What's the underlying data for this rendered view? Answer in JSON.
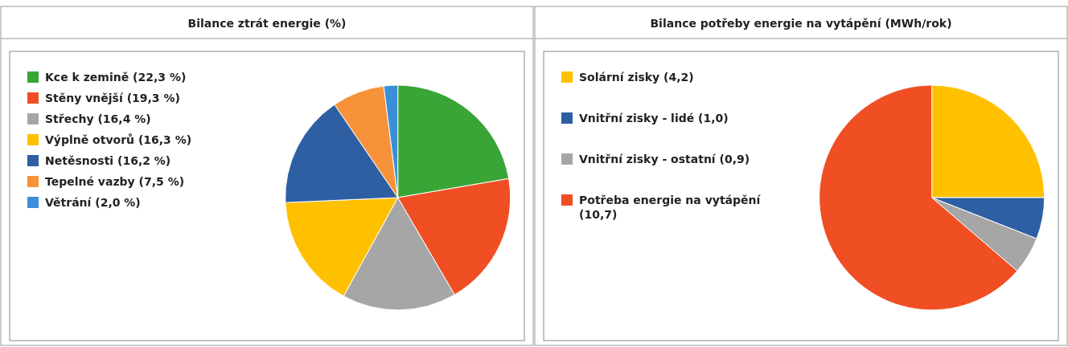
{
  "chart_data": [
    {
      "type": "pie",
      "title": "Bilance ztrát energie (%)",
      "legend": "left",
      "categories": [
        "Kce k zemině (22,3 %)",
        "Stěny vnější (19,3 %)",
        "Střechy (16,4 %)",
        "Výplně otvorů (16,3 %)",
        "Netěsnosti (16,2 %)",
        "Tepelné vazby (7,5 %)",
        "Větrání (2,0 %)"
      ],
      "values": [
        22.3,
        19.3,
        16.4,
        16.3,
        16.2,
        7.5,
        2.0
      ],
      "colors": [
        "#3aa537",
        "#f04e23",
        "#a6a6a6",
        "#ffc000",
        "#2e5fa3",
        "#f7923a",
        "#3a8fd8"
      ]
    },
    {
      "type": "pie",
      "title": "Bilance potřeby energie na vytápění (MWh/rok)",
      "legend": "left",
      "categories": [
        "Solární zisky (4,2)",
        "Vnitřní zisky - lidé (1,0)",
        "Vnitřní zisky - ostatní (0,9)",
        "Potřeba energie na vytápění (10,7)"
      ],
      "values": [
        4.2,
        1.0,
        0.9,
        10.7
      ],
      "colors": [
        "#ffc000",
        "#2e5fa3",
        "#a6a6a6",
        "#f04e23"
      ]
    }
  ]
}
